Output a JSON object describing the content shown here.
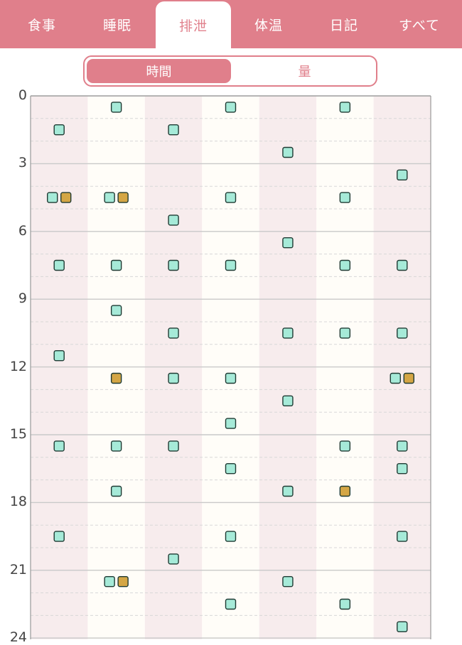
{
  "tabs": [
    "食事",
    "睡眠",
    "排泄",
    "体温",
    "日記",
    "すべて"
  ],
  "active_tab": 2,
  "segments": [
    "時間",
    "量"
  ],
  "active_segment": 0,
  "colors": {
    "accent": "#e07f8b",
    "stripe_pink": "#f7eced",
    "stripe_cream": "#fffdf8",
    "marker_teal": "#a6ead8",
    "marker_gold": "#d4a645",
    "grid_major": "#c9c9c9",
    "grid_minor": "#d8d8d8"
  },
  "chart_data": {
    "type": "scatter",
    "y_axis": {
      "range": [
        0,
        24
      ],
      "inverted": true,
      "ticks": [
        0,
        3,
        6,
        9,
        12,
        15,
        18,
        21,
        24
      ]
    },
    "columns": 7,
    "grid": {
      "major_every": 3,
      "minor_every": 1,
      "minor_style": "dashed"
    },
    "series": [
      {
        "kind": "urine",
        "color": "#a6ead8",
        "points": [
          {
            "day": 0,
            "hour": 1.5
          },
          {
            "day": 0,
            "hour": 4.5
          },
          {
            "day": 0,
            "hour": 7.5
          },
          {
            "day": 0,
            "hour": 11.5
          },
          {
            "day": 0,
            "hour": 15.5
          },
          {
            "day": 0,
            "hour": 19.5
          },
          {
            "day": 1,
            "hour": 0.5
          },
          {
            "day": 1,
            "hour": 4.5
          },
          {
            "day": 1,
            "hour": 7.5
          },
          {
            "day": 1,
            "hour": 9.5
          },
          {
            "day": 1,
            "hour": 15.5
          },
          {
            "day": 1,
            "hour": 17.5
          },
          {
            "day": 1,
            "hour": 21.5
          },
          {
            "day": 2,
            "hour": 1.5
          },
          {
            "day": 2,
            "hour": 5.5
          },
          {
            "day": 2,
            "hour": 7.5
          },
          {
            "day": 2,
            "hour": 10.5
          },
          {
            "day": 2,
            "hour": 12.5
          },
          {
            "day": 2,
            "hour": 15.5
          },
          {
            "day": 2,
            "hour": 20.5
          },
          {
            "day": 3,
            "hour": 0.5
          },
          {
            "day": 3,
            "hour": 4.5
          },
          {
            "day": 3,
            "hour": 7.5
          },
          {
            "day": 3,
            "hour": 12.5
          },
          {
            "day": 3,
            "hour": 14.5
          },
          {
            "day": 3,
            "hour": 16.5
          },
          {
            "day": 3,
            "hour": 19.5
          },
          {
            "day": 3,
            "hour": 22.5
          },
          {
            "day": 4,
            "hour": 2.5
          },
          {
            "day": 4,
            "hour": 6.5
          },
          {
            "day": 4,
            "hour": 10.5
          },
          {
            "day": 4,
            "hour": 13.5
          },
          {
            "day": 4,
            "hour": 17.5
          },
          {
            "day": 4,
            "hour": 21.5
          },
          {
            "day": 5,
            "hour": 0.5
          },
          {
            "day": 5,
            "hour": 4.5
          },
          {
            "day": 5,
            "hour": 7.5
          },
          {
            "day": 5,
            "hour": 10.5
          },
          {
            "day": 5,
            "hour": 15.5
          },
          {
            "day": 5,
            "hour": 22.5
          },
          {
            "day": 6,
            "hour": 3.5
          },
          {
            "day": 6,
            "hour": 7.5
          },
          {
            "day": 6,
            "hour": 10.5
          },
          {
            "day": 6,
            "hour": 12.5
          },
          {
            "day": 6,
            "hour": 15.5
          },
          {
            "day": 6,
            "hour": 16.5
          },
          {
            "day": 6,
            "hour": 19.5
          },
          {
            "day": 6,
            "hour": 23.5
          }
        ]
      },
      {
        "kind": "stool",
        "color": "#d4a645",
        "points": [
          {
            "day": 0,
            "hour": 4.5
          },
          {
            "day": 1,
            "hour": 4.5
          },
          {
            "day": 1,
            "hour": 12.5
          },
          {
            "day": 1,
            "hour": 21.5
          },
          {
            "day": 5,
            "hour": 17.5
          },
          {
            "day": 6,
            "hour": 12.5
          }
        ]
      }
    ]
  }
}
